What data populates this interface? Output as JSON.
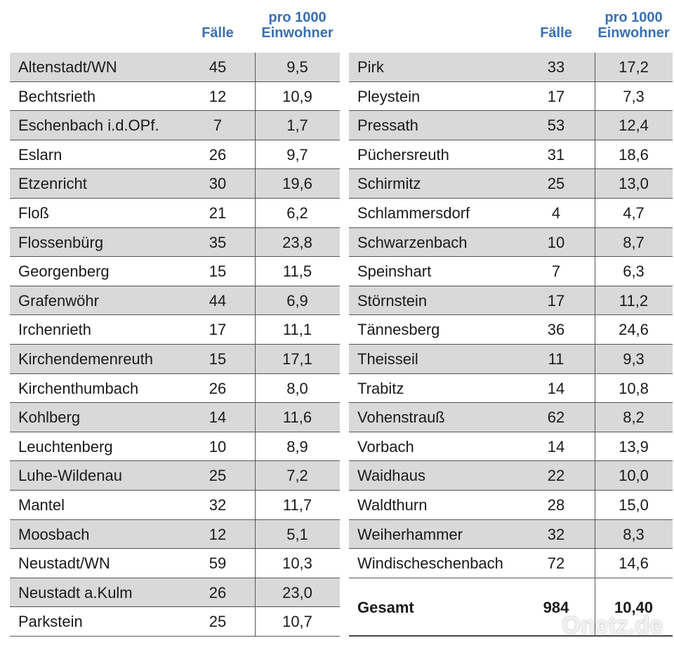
{
  "tables": [
    {
      "header": {
        "cases": "Fälle",
        "rate_line1": "pro 1000",
        "rate_line2": "Einwohner"
      },
      "rows": [
        [
          "Altenstadt/WN",
          "45",
          "9,5"
        ],
        [
          "Bechtsrieth",
          "12",
          "10,9"
        ],
        [
          "Eschenbach i.d.OPf.",
          "7",
          "1,7"
        ],
        [
          "Eslarn",
          "26",
          "9,7"
        ],
        [
          "Etzenricht",
          "30",
          "19,6"
        ],
        [
          "Floß",
          "21",
          "6,2"
        ],
        [
          "Flossenbürg",
          "35",
          "23,8"
        ],
        [
          "Georgenberg",
          "15",
          "11,5"
        ],
        [
          "Grafenwöhr",
          "44",
          "6,9"
        ],
        [
          "Irchenrieth",
          "17",
          "11,1"
        ],
        [
          "Kirchendemenreuth",
          "15",
          "17,1"
        ],
        [
          "Kirchenthumbach",
          "26",
          "8,0"
        ],
        [
          "Kohlberg",
          "14",
          "11,6"
        ],
        [
          "Leuchtenberg",
          "10",
          "8,9"
        ],
        [
          "Luhe-Wildenau",
          "25",
          "7,2"
        ],
        [
          "Mantel",
          "32",
          "11,7"
        ],
        [
          "Moosbach",
          "12",
          "5,1"
        ],
        [
          "Neustadt/WN",
          "59",
          "10,3"
        ],
        [
          "Neustadt a.Kulm",
          "26",
          "23,0"
        ],
        [
          "Parkstein",
          "25",
          "10,7"
        ]
      ]
    },
    {
      "header": {
        "cases": "Fälle",
        "rate_line1": "pro 1000",
        "rate_line2": "Einwohner"
      },
      "rows": [
        [
          "Pirk",
          "33",
          "17,2"
        ],
        [
          "Pleystein",
          "17",
          "7,3"
        ],
        [
          "Pressath",
          "53",
          "12,4"
        ],
        [
          "Püchersreuth",
          "31",
          "18,6"
        ],
        [
          "Schirmitz",
          "25",
          "13,0"
        ],
        [
          "Schlammersdorf",
          "4",
          "4,7"
        ],
        [
          "Schwarzenbach",
          "10",
          "8,7"
        ],
        [
          "Speinshart",
          "7",
          "6,3"
        ],
        [
          "Störnstein",
          "17",
          "11,2"
        ],
        [
          "Tännesberg",
          "36",
          "24,6"
        ],
        [
          "Theisseil",
          "11",
          "9,3"
        ],
        [
          "Trabitz",
          "14",
          "10,8"
        ],
        [
          "Vohenstrauß",
          "62",
          "8,2"
        ],
        [
          "Vorbach",
          "14",
          "13,9"
        ],
        [
          "Waidhaus",
          "22",
          "10,0"
        ],
        [
          "Waldthurn",
          "28",
          "15,0"
        ],
        [
          "Weiherhammer",
          "32",
          "8,3"
        ],
        [
          "Windischeschenbach",
          "72",
          "14,6"
        ]
      ],
      "total": [
        "Gesamt",
        "984",
        "10,40"
      ]
    }
  ],
  "watermark": "Onetz.de"
}
